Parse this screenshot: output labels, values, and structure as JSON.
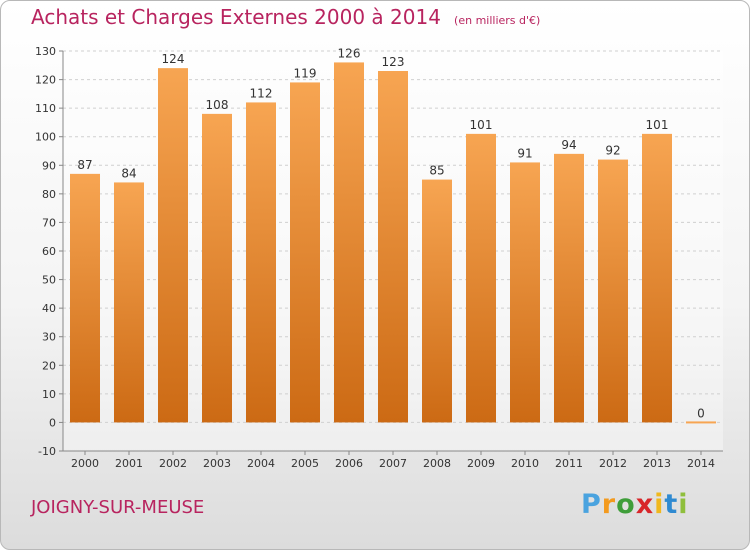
{
  "title": "Achats et Charges Externes 2000 à 2014",
  "subtitle": "(en milliers d'€)",
  "location": "JOIGNY-SUR-MEUSE",
  "logo": {
    "letters": [
      "P",
      "r",
      "o",
      "x",
      "i",
      "t",
      "i"
    ],
    "colors": [
      "#4aa3df",
      "#f39a1e",
      "#3f9e3a",
      "#d8262a",
      "#f0b81e",
      "#2f8ad1",
      "#8fbf3c"
    ]
  },
  "colors": {
    "bar_top": "#f7a552",
    "bar_bottom": "#cc6a14",
    "title": "#b8245f"
  },
  "chart_data": {
    "type": "bar",
    "categories": [
      "2000",
      "2001",
      "2002",
      "2003",
      "2004",
      "2005",
      "2006",
      "2007",
      "2008",
      "2009",
      "2010",
      "2011",
      "2012",
      "2013",
      "2014"
    ],
    "values": [
      87,
      84,
      124,
      108,
      112,
      119,
      126,
      123,
      85,
      101,
      91,
      94,
      92,
      101,
      0
    ],
    "data_labels": [
      "87",
      "84",
      "124",
      "108",
      "112",
      "119",
      "126",
      "123",
      "85",
      "101",
      "91",
      "94",
      "92",
      "101",
      "0"
    ],
    "yticks": [
      -10,
      0,
      10,
      20,
      30,
      40,
      50,
      60,
      70,
      80,
      90,
      100,
      110,
      120,
      130
    ],
    "ylim": [
      -10,
      130
    ],
    "grid": true
  }
}
